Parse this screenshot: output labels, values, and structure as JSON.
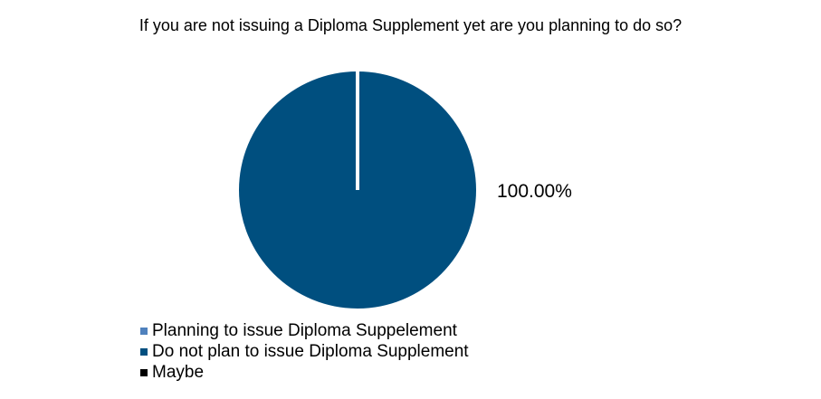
{
  "chart_data": {
    "type": "pie",
    "title": "If you are not issuing a Diploma Supplement yet are you planning to do so?",
    "categories": [
      "Planning to issue Diploma Suppelement",
      "Do not plan to issue Diploma Supplement",
      "Maybe"
    ],
    "values": [
      0,
      100,
      0
    ],
    "colors": [
      "#4f81bd",
      "#004f7f",
      "#000000"
    ],
    "data_labels": [
      "",
      "100.00%",
      ""
    ],
    "legend_position": "bottom"
  }
}
